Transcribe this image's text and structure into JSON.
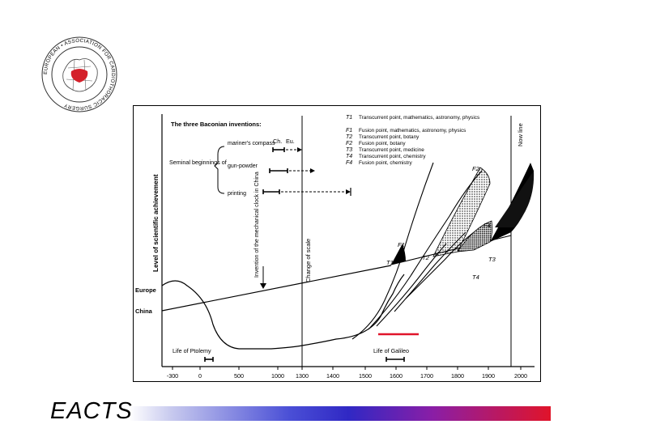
{
  "logo": {
    "ring_text": "EUROPEAN • ASSOCIATION FOR CARDIOTHORACIC SURGERY",
    "accent": "#d4202a"
  },
  "footer": {
    "brand": "EACTS",
    "bar_colors": [
      "#c7c9ee",
      "#3028c4",
      "#e0142a"
    ]
  },
  "figure": {
    "y_axis_label": "Level of scientific achievement",
    "now_line_label": "Now line",
    "change_of_scale_label": "Change of scale",
    "clock_note": "Invention of the mechanical clock in China",
    "baconian_title": "The three Baconian inventions:",
    "col_ch": "Ch.",
    "col_eu": "Eu.",
    "seminal_label": "Seminal beginnings of",
    "inventions": [
      "mariner's compass",
      "gun-powder",
      "printing"
    ],
    "europe_label": "Europe",
    "china_label": "China",
    "ptolemy_label": "Life of Ptolemy",
    "galileo_label": "Life of Galileo",
    "legend": [
      {
        "sym": "T1",
        "text": "Transcurrent point, mathematics, astronomy, physics"
      },
      {
        "sym": "F1",
        "text": "Fusion point, mathematics, astronomy, physics"
      },
      {
        "sym": "T2",
        "text": "Transcurrent point, botany"
      },
      {
        "sym": "F2",
        "text": "Fusion point, botany"
      },
      {
        "sym": "T3",
        "text": "Transcurrent point, medicine"
      },
      {
        "sym": "T4",
        "text": "Transcurrent point, chemistry"
      },
      {
        "sym": "F4",
        "text": "Fusion point, chemistry"
      }
    ],
    "x_ticks": [
      "-300",
      "0",
      "500",
      "1000",
      "1300",
      "1400",
      "1500",
      "1600",
      "1700",
      "1800",
      "1900",
      "2000"
    ],
    "point_labels": {
      "F1": "F1",
      "F2": "F2",
      "F4": "F4",
      "T1": "T1",
      "T2": "T2",
      "T3": "T3",
      "T4": "T4"
    }
  }
}
